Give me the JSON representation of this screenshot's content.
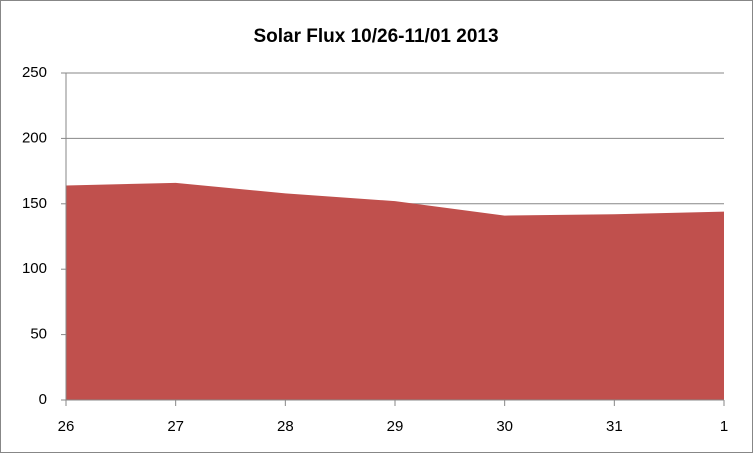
{
  "chart_data": {
    "type": "area",
    "title": "Solar Flux 10/26-11/01 2013",
    "categories": [
      "26",
      "27",
      "28",
      "29",
      "30",
      "31",
      "1"
    ],
    "values": [
      164,
      166,
      158,
      152,
      141,
      142,
      144
    ],
    "color": "#c0504d",
    "ylim": [
      0,
      250
    ],
    "yticks": [
      0,
      50,
      100,
      150,
      200,
      250
    ],
    "grid": true
  }
}
